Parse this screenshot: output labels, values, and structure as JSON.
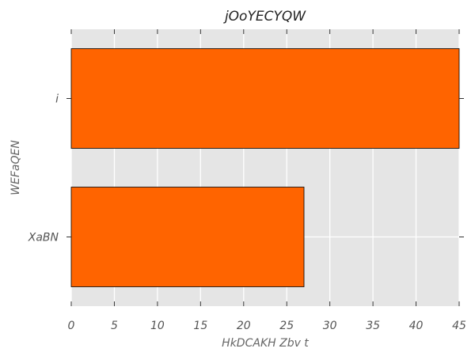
{
  "chart_data": {
    "type": "bar",
    "orientation": "horizontal",
    "title": "jOoYECYQW",
    "xlabel": "HkDCAKH Zbv t",
    "ylabel": "WEFaQEN",
    "categories": [
      "i",
      "XaBN"
    ],
    "values": [
      45,
      27
    ],
    "xlim": [
      0,
      45
    ],
    "xticks": [
      0,
      5,
      10,
      15,
      20,
      25,
      30,
      35,
      40,
      45
    ],
    "grid": true,
    "legend": "none",
    "colors": {
      "bar": "#ff6400",
      "background": "#e5e5e5",
      "grid": "#ffffff"
    }
  }
}
